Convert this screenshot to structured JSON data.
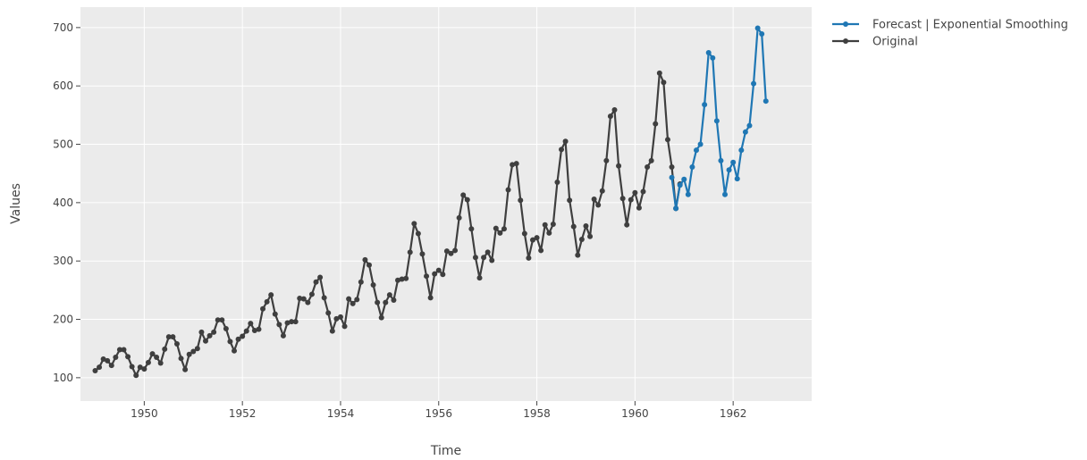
{
  "chart_data": {
    "type": "line",
    "xlabel": "Time",
    "ylabel": "Values",
    "xlim": [
      1948.7,
      1963.6
    ],
    "ylim": [
      60,
      735
    ],
    "x_ticks": [
      1950,
      1952,
      1954,
      1956,
      1958,
      1960,
      1962
    ],
    "y_ticks": [
      100,
      200,
      300,
      400,
      500,
      600,
      700
    ],
    "grid": true,
    "legend_position": "top-right",
    "colors": {
      "plot_background": "#ebebeb",
      "grid": "#ffffff"
    },
    "series": [
      {
        "name": "Forecast | Exponential Smoothing",
        "color": "#1f77b4",
        "start": "1960-10",
        "frequency": "monthly",
        "values": [
          443,
          390,
          430,
          440,
          414,
          461,
          490,
          500,
          568,
          657,
          648,
          540,
          472,
          414,
          456,
          469,
          441,
          490,
          521,
          532,
          604,
          699,
          689,
          574
        ]
      },
      {
        "name": "Original",
        "color": "#3f3f3f",
        "start": "1949-01",
        "frequency": "monthly",
        "values": [
          112,
          118,
          132,
          129,
          121,
          135,
          148,
          148,
          136,
          119,
          104,
          118,
          115,
          126,
          141,
          135,
          125,
          149,
          170,
          170,
          158,
          133,
          114,
          140,
          145,
          150,
          178,
          163,
          172,
          178,
          199,
          199,
          184,
          162,
          146,
          166,
          171,
          180,
          193,
          181,
          183,
          218,
          230,
          242,
          209,
          191,
          172,
          194,
          196,
          196,
          236,
          235,
          229,
          243,
          264,
          272,
          237,
          211,
          180,
          201,
          204,
          188,
          235,
          227,
          234,
          264,
          302,
          293,
          259,
          229,
          203,
          229,
          242,
          233,
          267,
          269,
          270,
          315,
          364,
          347,
          312,
          274,
          237,
          278,
          284,
          277,
          317,
          313,
          318,
          374,
          413,
          405,
          355,
          306,
          271,
          306,
          315,
          301,
          356,
          348,
          355,
          422,
          465,
          467,
          404,
          347,
          305,
          336,
          340,
          318,
          362,
          348,
          363,
          435,
          491,
          505,
          404,
          359,
          310,
          337,
          360,
          342,
          406,
          396,
          420,
          472,
          548,
          559,
          463,
          407,
          362,
          405,
          417,
          391,
          419,
          461,
          472,
          535,
          622,
          606,
          508,
          461,
          390,
          432
        ]
      }
    ]
  }
}
